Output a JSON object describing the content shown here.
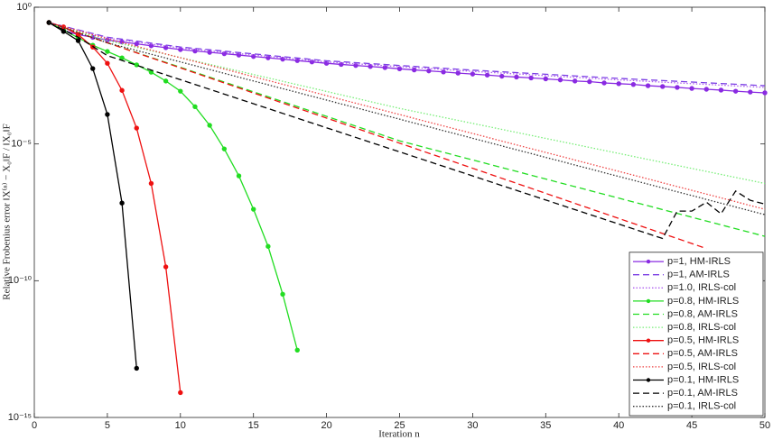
{
  "chart_data": {
    "type": "line",
    "xlabel": "Iteration n",
    "ylabel": "Relative Frobenius error ‖X⁽ⁿ⁾ − X₀‖F / ‖X₀‖F",
    "xlim": [
      0,
      50
    ],
    "xticks": [
      0,
      5,
      10,
      15,
      20,
      25,
      30,
      35,
      40,
      45,
      50
    ],
    "ylim": [
      1e-15,
      1
    ],
    "yscale": "log",
    "yticks": [
      {
        "value": 1e-15,
        "label": "10⁻¹⁵"
      },
      {
        "value": 1e-10,
        "label": "10⁻¹⁰"
      },
      {
        "value": 1e-05,
        "label": "10⁻⁵"
      },
      {
        "value": 1,
        "label": "10⁰"
      }
    ],
    "grid": false,
    "legend": "lower right",
    "series": [
      {
        "name": "p=1, HM-IRLS",
        "color": "#8a2be2",
        "dash": "solid",
        "marker": true,
        "x": [
          1,
          2,
          3,
          4,
          5,
          6,
          7,
          8,
          9,
          10,
          11,
          12,
          13,
          14,
          15,
          16,
          17,
          18,
          19,
          20,
          21,
          22,
          23,
          24,
          25,
          26,
          27,
          28,
          29,
          30,
          31,
          32,
          33,
          34,
          35,
          36,
          37,
          38,
          39,
          40,
          41,
          42,
          43,
          44,
          45,
          46,
          47,
          48,
          49,
          50
        ],
        "values": [
          0.275,
          0.141,
          0.1,
          0.0794,
          0.0631,
          0.0537,
          0.0457,
          0.0389,
          0.0331,
          0.0282,
          0.0251,
          0.0224,
          0.02,
          0.0178,
          0.0158,
          0.0141,
          0.0126,
          0.0112,
          0.01,
          0.0089,
          0.0081,
          0.0074,
          0.0068,
          0.0062,
          0.0056,
          0.0051,
          0.0047,
          0.0043,
          0.0039,
          0.0036,
          0.0033,
          0.003,
          0.0028,
          0.0026,
          0.0024,
          0.0022,
          0.002,
          0.0019,
          0.0017,
          0.0016,
          0.0015,
          0.00135,
          0.00126,
          0.00117,
          0.00107,
          0.001,
          0.00093,
          0.00085,
          0.00079,
          0.00074
        ]
      },
      {
        "name": "p=1, AM-IRLS",
        "color": "#7b3fe4",
        "dash": "dashed",
        "marker": false,
        "x": [
          1,
          5,
          10,
          20,
          30,
          40,
          50
        ],
        "values": [
          0.275,
          0.08,
          0.035,
          0.011,
          0.005,
          0.0025,
          0.00135
        ]
      },
      {
        "name": "p=1.0, IRLS-col",
        "color": "#b060f0",
        "dash": "dotted",
        "marker": false,
        "x": [
          1,
          5,
          10,
          20,
          30,
          40,
          50
        ],
        "values": [
          0.275,
          0.075,
          0.032,
          0.01,
          0.0045,
          0.0022,
          0.00117
        ]
      },
      {
        "name": "p=0.8, HM-IRLS",
        "color": "#22dd22",
        "dash": "solid",
        "marker": true,
        "x": [
          1,
          2,
          3,
          4,
          5,
          6,
          7,
          8,
          9,
          10,
          11,
          12,
          13,
          14,
          15,
          16,
          17,
          18
        ],
        "values": [
          0.275,
          0.148,
          0.0759,
          0.0407,
          0.024,
          0.0141,
          0.0078,
          0.0042,
          0.002,
          0.00085,
          0.00023,
          4.8e-05,
          6.6e-06,
          6.8e-07,
          4.1e-08,
          1.8e-09,
          3.2e-11,
          2.9e-13
        ]
      },
      {
        "name": "p=0.8, AM-IRLS",
        "color": "#22dd22",
        "dash": "dashed",
        "marker": false,
        "x": [
          1,
          5,
          25,
          50
        ],
        "values": [
          0.275,
          0.05,
          1.3e-05,
          4.2e-09
        ]
      },
      {
        "name": "p=0.8, IRLS-col",
        "color": "#77ee77",
        "dash": "dotted",
        "marker": false,
        "x": [
          1,
          5,
          25,
          50
        ],
        "values": [
          0.275,
          0.06,
          0.0002,
          3.6e-07
        ]
      },
      {
        "name": "p=0.5, HM-IRLS",
        "color": "#ee1111",
        "dash": "solid",
        "marker": true,
        "x": [
          1,
          2,
          3,
          4,
          5,
          6,
          7,
          8,
          9,
          10
        ],
        "values": [
          0.275,
          0.19,
          0.1,
          0.035,
          0.0089,
          0.00091,
          3.8e-05,
          3.6e-07,
          3.2e-10,
          8.1e-15
        ]
      },
      {
        "name": "p=0.5, AM-IRLS",
        "color": "#ee1111",
        "dash": "dashed",
        "marker": false,
        "x": [
          1,
          5,
          46
        ],
        "values": [
          0.275,
          0.05,
          1.5e-09
        ]
      },
      {
        "name": "p=0.5, IRLS-col",
        "color": "#ee4444",
        "dash": "dotted",
        "marker": false,
        "x": [
          1,
          5,
          50
        ],
        "values": [
          0.275,
          0.07,
          4.1e-08
        ]
      },
      {
        "name": "p=0.1, HM-IRLS",
        "color": "#000000",
        "dash": "solid",
        "marker": true,
        "x": [
          1,
          2,
          3,
          4,
          5,
          6,
          7
        ],
        "values": [
          0.275,
          0.13,
          0.06,
          0.0057,
          0.00012,
          6.9e-08,
          6.3e-14
        ]
      },
      {
        "name": "p=0.1, AM-IRLS",
        "color": "#000000",
        "dash": "dashed",
        "marker": false,
        "x": [
          1,
          3,
          5,
          43,
          44,
          45,
          46,
          47,
          48,
          49,
          50
        ],
        "values": [
          0.275,
          0.08,
          0.017,
          3.5e-09,
          3.5e-08,
          3.5e-08,
          7.4e-08,
          2.8e-08,
          1.9e-07,
          8.7e-08,
          6.3e-08
        ]
      },
      {
        "name": "p=0.1, IRLS-col",
        "color": "#333333",
        "dash": "dotted",
        "marker": false,
        "x": [
          1,
          5,
          50
        ],
        "values": [
          0.275,
          0.05,
          2.6e-08
        ]
      }
    ]
  }
}
